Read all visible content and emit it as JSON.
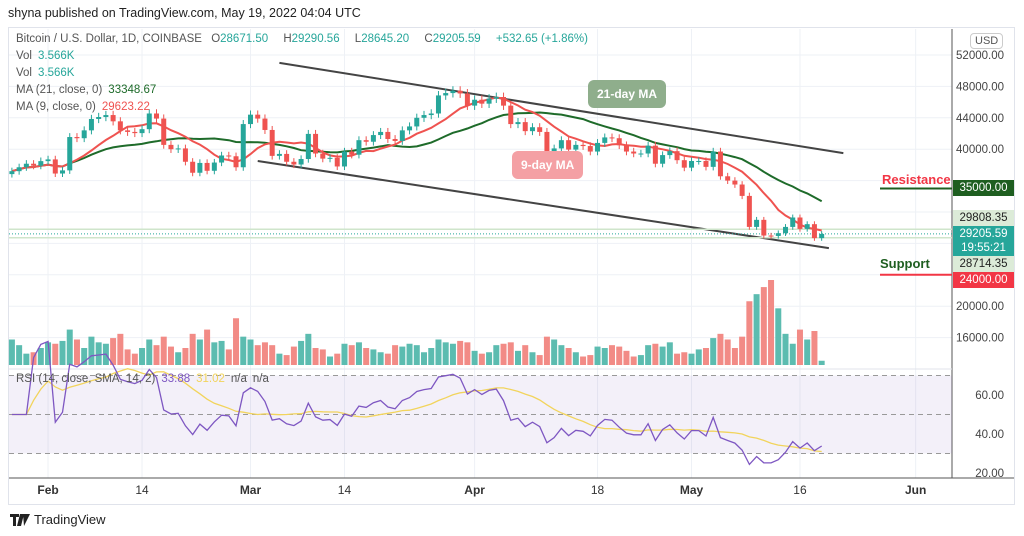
{
  "published": "shyna published on TradingView.com, May 19, 2022 04:04 UTC",
  "header": {
    "symbol": "Bitcoin / U.S. Dollar, 1D, COINBASE",
    "o_label": "O",
    "o": "28671.50",
    "h_label": "H",
    "h": "29290.56",
    "l_label": "L",
    "l": "28645.20",
    "c_label": "C",
    "c": "29205.59",
    "change": "+532.65 (+1.86%)"
  },
  "legend": {
    "vol1_label": "Vol",
    "vol1": "3.566K",
    "vol2_label": "Vol",
    "vol2": "3.566K",
    "ma21_label": "MA (21, close, 0)",
    "ma21": "33348.67",
    "ma9_label": "MA (9, close, 0)",
    "ma9": "29623.22",
    "rsi_label": "RSI (14, close, SMA, 14, 2)",
    "rsi": "33.88",
    "rsi_sma": "31.02",
    "na1": "n/a",
    "na2": "n/a"
  },
  "annotations": {
    "ma21_bubble": "21-day MA",
    "ma9_bubble": "9-day MA",
    "resistance": "Resistance",
    "support": "Support"
  },
  "price_axis": {
    "currency": "USD",
    "ticks": [
      "52000.00",
      "48000.00",
      "44000.00",
      "40000.00",
      "20000.00",
      "16000.00"
    ],
    "resistance_label": "35000.00",
    "high_label": "29808.35",
    "last_label": "29205.59",
    "countdown": "19:55:21",
    "low_label": "28714.35",
    "support_label": "24000.00"
  },
  "rsi_axis": {
    "ticks": [
      "60.00",
      "40.00",
      "20.00"
    ]
  },
  "time_axis": {
    "labels": [
      {
        "text": "Feb",
        "date": "2022-02-01",
        "bold": true
      },
      {
        "text": "14",
        "date": "2022-02-14",
        "bold": false
      },
      {
        "text": "Mar",
        "date": "2022-03-01",
        "bold": true
      },
      {
        "text": "14",
        "date": "2022-03-14",
        "bold": false
      },
      {
        "text": "Apr",
        "date": "2022-04-01",
        "bold": true
      },
      {
        "text": "18",
        "date": "2022-04-18",
        "bold": false
      },
      {
        "text": "May",
        "date": "2022-05-01",
        "bold": true
      },
      {
        "text": "16",
        "date": "2022-05-16",
        "bold": false
      },
      {
        "text": "Jun",
        "date": "2022-06-01",
        "bold": true
      }
    ]
  },
  "brand": "TradingView",
  "colors": {
    "up": "#26a69a",
    "down": "#ef5350",
    "ma21": "#1e6b2a",
    "ma9": "#ef5350",
    "rsi": "#7e57c2",
    "rsi_sma": "#f2d45c",
    "channel": "#444444",
    "resistance": "#1e5e20",
    "support": "#f23645"
  },
  "chart_data": {
    "type": "candlestick",
    "symbol": "BTCUSD",
    "interval": "1D",
    "start_date": "2022-01-27",
    "ylim": [
      20000,
      54000
    ],
    "levels": {
      "resistance": 35000,
      "support": 24000
    },
    "channel": {
      "upper": [
        [
          "2022-03-05",
          51000
        ],
        [
          "2022-05-22",
          39500
        ]
      ],
      "lower": [
        [
          "2022-03-02",
          38500
        ],
        [
          "2022-05-20",
          27400
        ]
      ]
    },
    "close": [
      37200,
      37700,
      38150,
      37900,
      38480,
      38700,
      36900,
      37300,
      41550,
      41400,
      42400,
      43850,
      44100,
      44350,
      43550,
      42400,
      42200,
      42050,
      42550,
      44550,
      43900,
      40550,
      40000,
      40100,
      38400,
      37000,
      38250,
      37250,
      38300,
      39200,
      39100,
      37700,
      43200,
      44400,
      43900,
      42450,
      39150,
      39400,
      38400,
      38050,
      38750,
      41950,
      39450,
      38800,
      38900,
      37800,
      39700,
      39300,
      41150,
      40950,
      41800,
      42200,
      41300,
      41050,
      42400,
      42900,
      44000,
      44350,
      44550,
      46850,
      47150,
      47450,
      47100,
      45550,
      46300,
      45800,
      46450,
      46650,
      45550,
      43200,
      43450,
      42300,
      42800,
      42200,
      39550,
      40100,
      41150,
      39950,
      40550,
      40400,
      39700,
      40800,
      41500,
      41400,
      40500,
      39700,
      39450,
      39450,
      40450,
      38150,
      39250,
      39750,
      38600,
      37650,
      38500,
      38500,
      37750,
      39700,
      36550,
      36000,
      35500,
      34050,
      30100,
      31000,
      29000,
      28950,
      29300,
      30100,
      31300,
      29850,
      30450,
      28671.5,
      29205.59
    ],
    "volume_k": [
      18,
      14,
      8,
      9,
      12,
      16,
      15,
      17,
      25,
      18,
      12,
      20,
      16,
      15,
      19,
      22,
      11,
      8,
      12,
      18,
      14,
      20,
      13,
      9,
      12,
      22,
      18,
      25,
      16,
      17,
      11,
      33,
      20,
      18,
      14,
      16,
      14,
      8,
      7,
      13,
      17,
      22,
      12,
      11,
      6,
      8,
      15,
      14,
      16,
      12,
      11,
      9,
      8,
      14,
      13,
      15,
      14,
      9,
      12,
      18,
      16,
      15,
      17,
      16,
      10,
      8,
      9,
      14,
      15,
      16,
      10,
      14,
      9,
      7,
      20,
      18,
      14,
      12,
      9,
      6,
      7,
      13,
      12,
      14,
      13,
      10,
      6,
      7,
      14,
      15,
      13,
      16,
      8,
      9,
      8,
      11,
      12,
      19,
      22,
      18,
      12,
      20,
      45,
      50,
      55,
      60,
      40,
      22,
      15,
      25,
      18,
      24,
      3
    ],
    "indicators": {
      "ma": [
        21,
        9
      ],
      "rsi": {
        "length": 14,
        "sma": 14,
        "bands": [
          70,
          50,
          30
        ]
      }
    }
  }
}
